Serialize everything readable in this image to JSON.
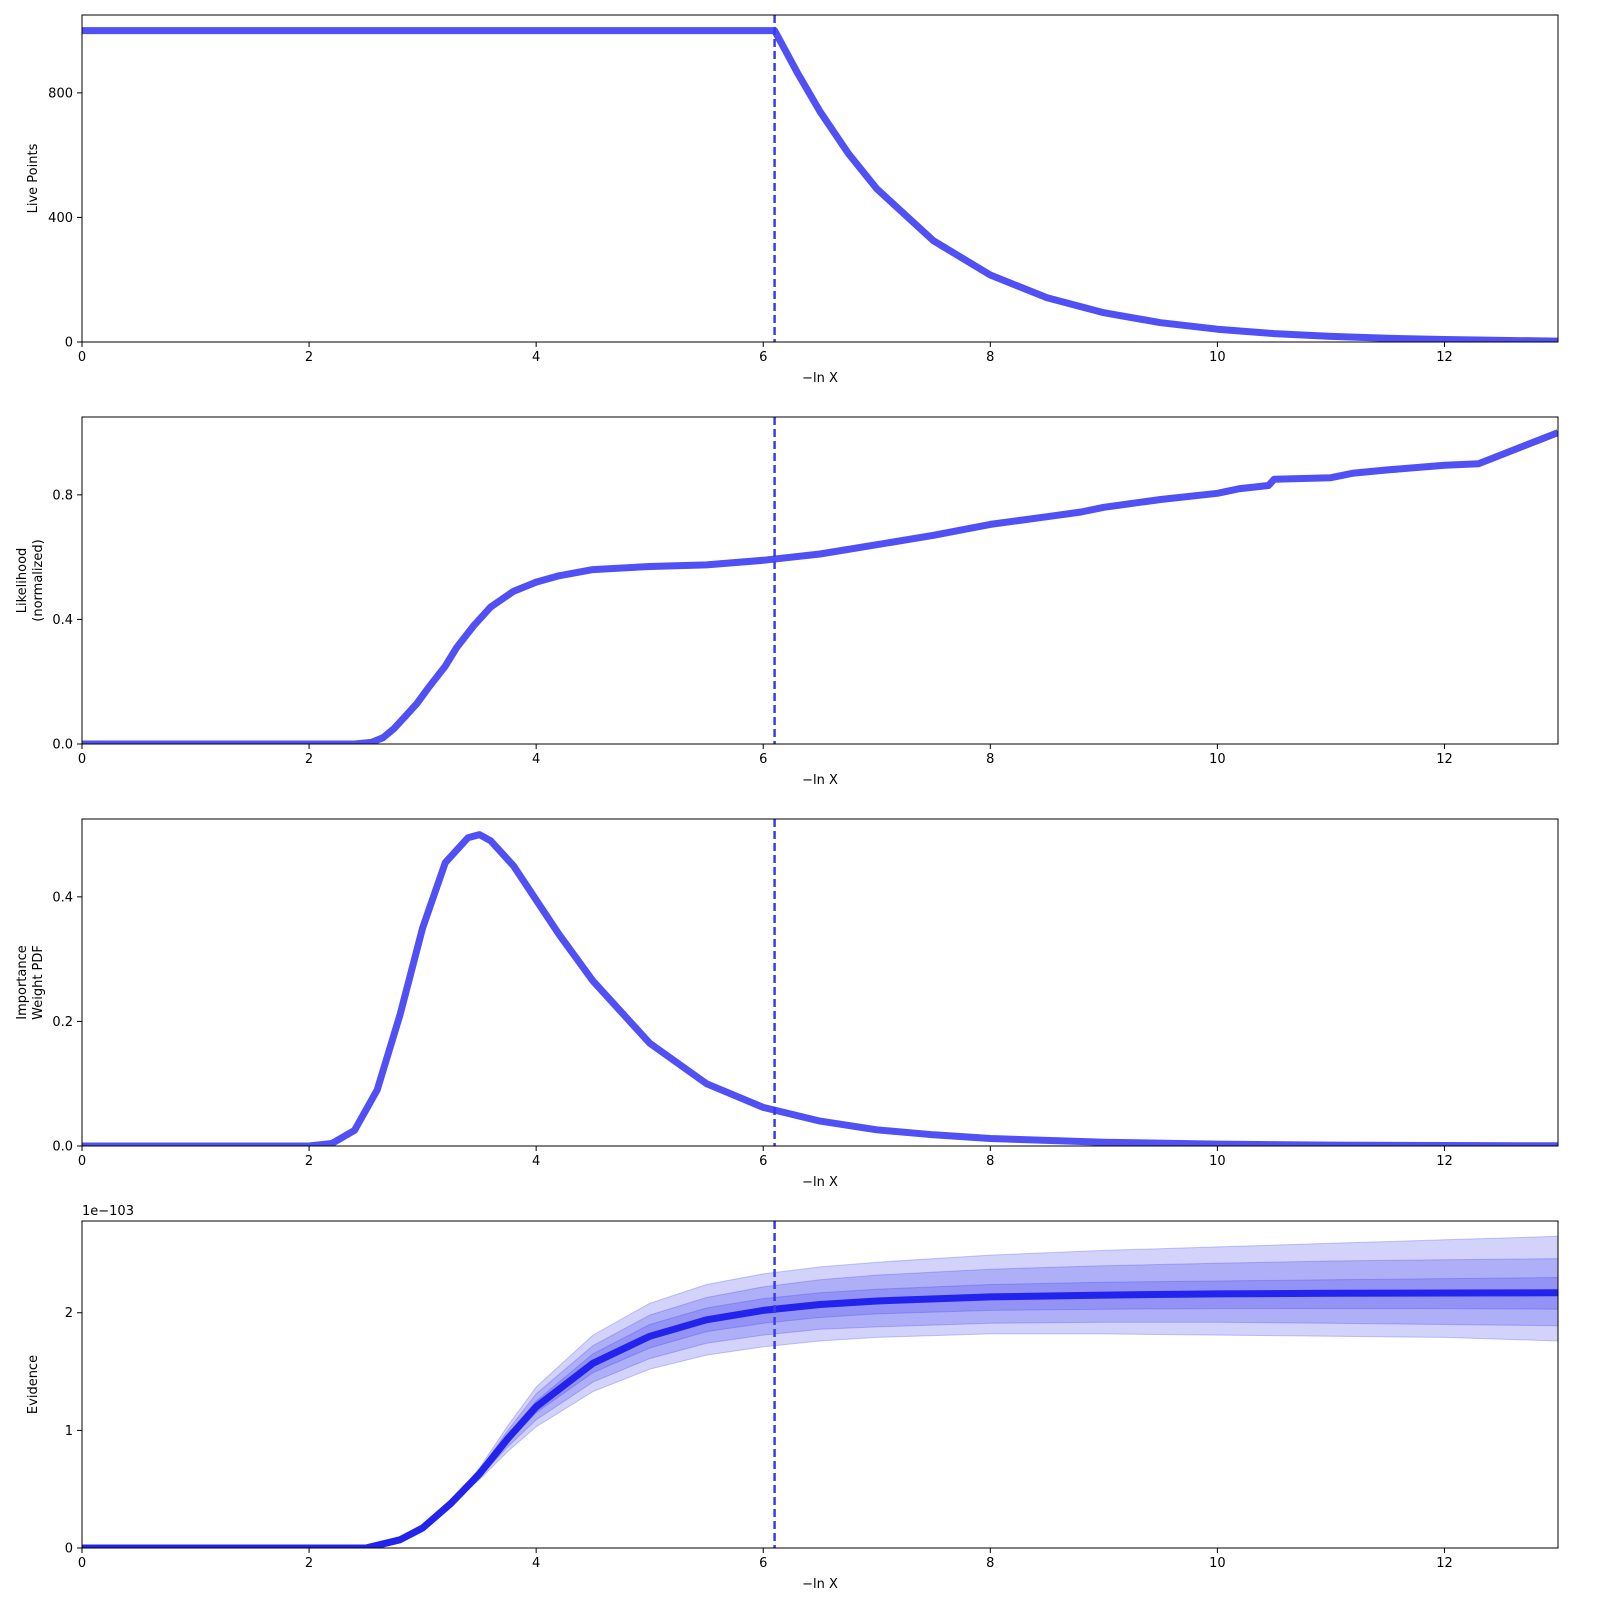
{
  "figure": {
    "colors": {
      "line": "#5050f5",
      "dashed": "#3a3af0",
      "evidence_line": "#2323ee",
      "band": "#3030ee"
    }
  },
  "chart_data": [
    {
      "type": "line",
      "ylabel": [
        "Live Points"
      ],
      "xlabel": "−ln X",
      "xlim": [
        0,
        13
      ],
      "ylim": [
        0,
        1050
      ],
      "xticks": [
        0,
        2,
        4,
        6,
        8,
        10,
        12
      ],
      "yticks": [
        0,
        400,
        800
      ],
      "ytick_labels": [
        "0",
        "400",
        "800"
      ],
      "vline_x": 6.1,
      "series": [
        {
          "x": [
            0,
            6.1,
            6.3,
            6.5,
            6.75,
            7.0,
            7.5,
            8.0,
            8.5,
            9.0,
            9.5,
            10.0,
            10.5,
            11.0,
            11.5,
            12.0,
            12.5,
            13.0
          ],
          "y": [
            1000,
            1000,
            865,
            740,
            605,
            492,
            325,
            215,
            142,
            94,
            62,
            41,
            27,
            18,
            12,
            8,
            5,
            3
          ]
        }
      ]
    },
    {
      "type": "line",
      "ylabel": [
        "Likelihood",
        "(normalized)"
      ],
      "xlabel": "−ln X",
      "xlim": [
        0,
        13
      ],
      "ylim": [
        0,
        1.05
      ],
      "xticks": [
        0,
        2,
        4,
        6,
        8,
        10,
        12
      ],
      "yticks": [
        0,
        0.4,
        0.8
      ],
      "ytick_labels": [
        "0.0",
        "0.4",
        "0.8"
      ],
      "vline_x": 6.1,
      "series": [
        {
          "x": [
            0,
            2.4,
            2.55,
            2.65,
            2.75,
            2.85,
            2.95,
            3.05,
            3.2,
            3.3,
            3.45,
            3.6,
            3.8,
            4.0,
            4.2,
            4.5,
            5.0,
            5.5,
            6.0,
            6.5,
            7.0,
            7.5,
            8.0,
            8.5,
            8.8,
            9.0,
            9.5,
            10.0,
            10.2,
            10.45,
            10.5,
            11.0,
            11.2,
            11.5,
            12.0,
            12.3,
            13.0
          ],
          "y": [
            0,
            0,
            0.005,
            0.02,
            0.05,
            0.09,
            0.13,
            0.18,
            0.25,
            0.31,
            0.38,
            0.44,
            0.49,
            0.52,
            0.54,
            0.56,
            0.57,
            0.575,
            0.59,
            0.61,
            0.64,
            0.67,
            0.705,
            0.73,
            0.745,
            0.76,
            0.785,
            0.805,
            0.82,
            0.83,
            0.85,
            0.855,
            0.87,
            0.88,
            0.895,
            0.9,
            1.0
          ]
        }
      ]
    },
    {
      "type": "line",
      "ylabel": [
        "Importance",
        "Weight PDF"
      ],
      "xlabel": "−ln X",
      "xlim": [
        0,
        13
      ],
      "ylim": [
        0,
        0.525
      ],
      "xticks": [
        0,
        2,
        4,
        6,
        8,
        10,
        12
      ],
      "yticks": [
        0,
        0.2,
        0.4
      ],
      "ytick_labels": [
        "0.0",
        "0.2",
        "0.4"
      ],
      "vline_x": 6.1,
      "series": [
        {
          "x": [
            0,
            2.0,
            2.2,
            2.4,
            2.6,
            2.8,
            3.0,
            3.2,
            3.4,
            3.5,
            3.6,
            3.8,
            4.0,
            4.2,
            4.5,
            5.0,
            5.5,
            6.0,
            6.5,
            7.0,
            7.5,
            8.0,
            9.0,
            10.0,
            11.0,
            12.0,
            13.0
          ],
          "y": [
            0,
            0,
            0.004,
            0.025,
            0.09,
            0.21,
            0.35,
            0.455,
            0.495,
            0.5,
            0.49,
            0.45,
            0.395,
            0.34,
            0.265,
            0.165,
            0.1,
            0.062,
            0.04,
            0.026,
            0.018,
            0.012,
            0.006,
            0.003,
            0.0015,
            0.0008,
            0.0004
          ]
        }
      ]
    },
    {
      "type": "area",
      "ylabel": [
        "Evidence"
      ],
      "xlabel": "−ln X",
      "offset_label": "1e−103",
      "xlim": [
        0,
        13
      ],
      "ylim": [
        0,
        2.78
      ],
      "xticks": [
        0,
        2,
        4,
        6,
        8,
        10,
        12
      ],
      "yticks": [
        0,
        1,
        2
      ],
      "ytick_labels": [
        "0",
        "1",
        "2"
      ],
      "vline_x": 6.1,
      "series": [
        {
          "name": "",
          "x": [
            0,
            2.5,
            2.8,
            3.0,
            3.25,
            3.5,
            3.75,
            4.0,
            4.5,
            5.0,
            5.5,
            6.0,
            6.5,
            7.0,
            8.0,
            9.0,
            10.0,
            11.0,
            12.0,
            13.0
          ],
          "y": [
            0,
            0,
            0.07,
            0.17,
            0.38,
            0.63,
            0.93,
            1.2,
            1.57,
            1.8,
            1.94,
            2.02,
            2.07,
            2.1,
            2.135,
            2.15,
            2.16,
            2.165,
            2.168,
            2.17
          ]
        }
      ],
      "bands": [
        {
          "level": "3 sigma",
          "x": [
            0,
            2.5,
            2.8,
            3.0,
            3.25,
            3.5,
            3.75,
            4.0,
            4.5,
            5.0,
            5.5,
            6.0,
            6.5,
            7.0,
            8.0,
            9.0,
            10.0,
            11.0,
            12.0,
            13.0
          ],
          "lower": [
            0,
            0,
            0.07,
            0.17,
            0.37,
            0.58,
            0.82,
            1.03,
            1.33,
            1.52,
            1.64,
            1.71,
            1.76,
            1.79,
            1.82,
            1.82,
            1.81,
            1.8,
            1.79,
            1.76
          ],
          "upper": [
            0,
            0,
            0.07,
            0.17,
            0.39,
            0.68,
            1.04,
            1.37,
            1.81,
            2.08,
            2.24,
            2.33,
            2.39,
            2.43,
            2.49,
            2.53,
            2.56,
            2.59,
            2.62,
            2.65
          ]
        },
        {
          "level": "2 sigma",
          "x": [
            0,
            2.5,
            2.8,
            3.0,
            3.25,
            3.5,
            3.75,
            4.0,
            4.5,
            5.0,
            5.5,
            6.0,
            6.5,
            7.0,
            8.0,
            9.0,
            10.0,
            11.0,
            12.0,
            13.0
          ],
          "lower": [
            0,
            0,
            0.07,
            0.17,
            0.375,
            0.6,
            0.86,
            1.09,
            1.41,
            1.61,
            1.74,
            1.81,
            1.86,
            1.88,
            1.91,
            1.92,
            1.92,
            1.91,
            1.9,
            1.89
          ],
          "upper": [
            0,
            0,
            0.07,
            0.17,
            0.385,
            0.66,
            1.0,
            1.31,
            1.72,
            1.98,
            2.13,
            2.22,
            2.28,
            2.32,
            2.37,
            2.4,
            2.42,
            2.44,
            2.45,
            2.46
          ]
        },
        {
          "level": "1 sigma",
          "x": [
            0,
            2.5,
            2.8,
            3.0,
            3.25,
            3.5,
            3.75,
            4.0,
            4.5,
            5.0,
            5.5,
            6.0,
            6.5,
            7.0,
            8.0,
            9.0,
            10.0,
            11.0,
            12.0,
            13.0
          ],
          "lower": [
            0,
            0,
            0.07,
            0.17,
            0.378,
            0.61,
            0.895,
            1.15,
            1.49,
            1.7,
            1.84,
            1.91,
            1.96,
            1.99,
            2.02,
            2.03,
            2.035,
            2.035,
            2.035,
            2.03
          ],
          "upper": [
            0,
            0,
            0.07,
            0.17,
            0.382,
            0.65,
            0.965,
            1.25,
            1.65,
            1.9,
            2.04,
            2.12,
            2.17,
            2.2,
            2.24,
            2.26,
            2.27,
            2.28,
            2.29,
            2.3
          ]
        }
      ]
    }
  ]
}
